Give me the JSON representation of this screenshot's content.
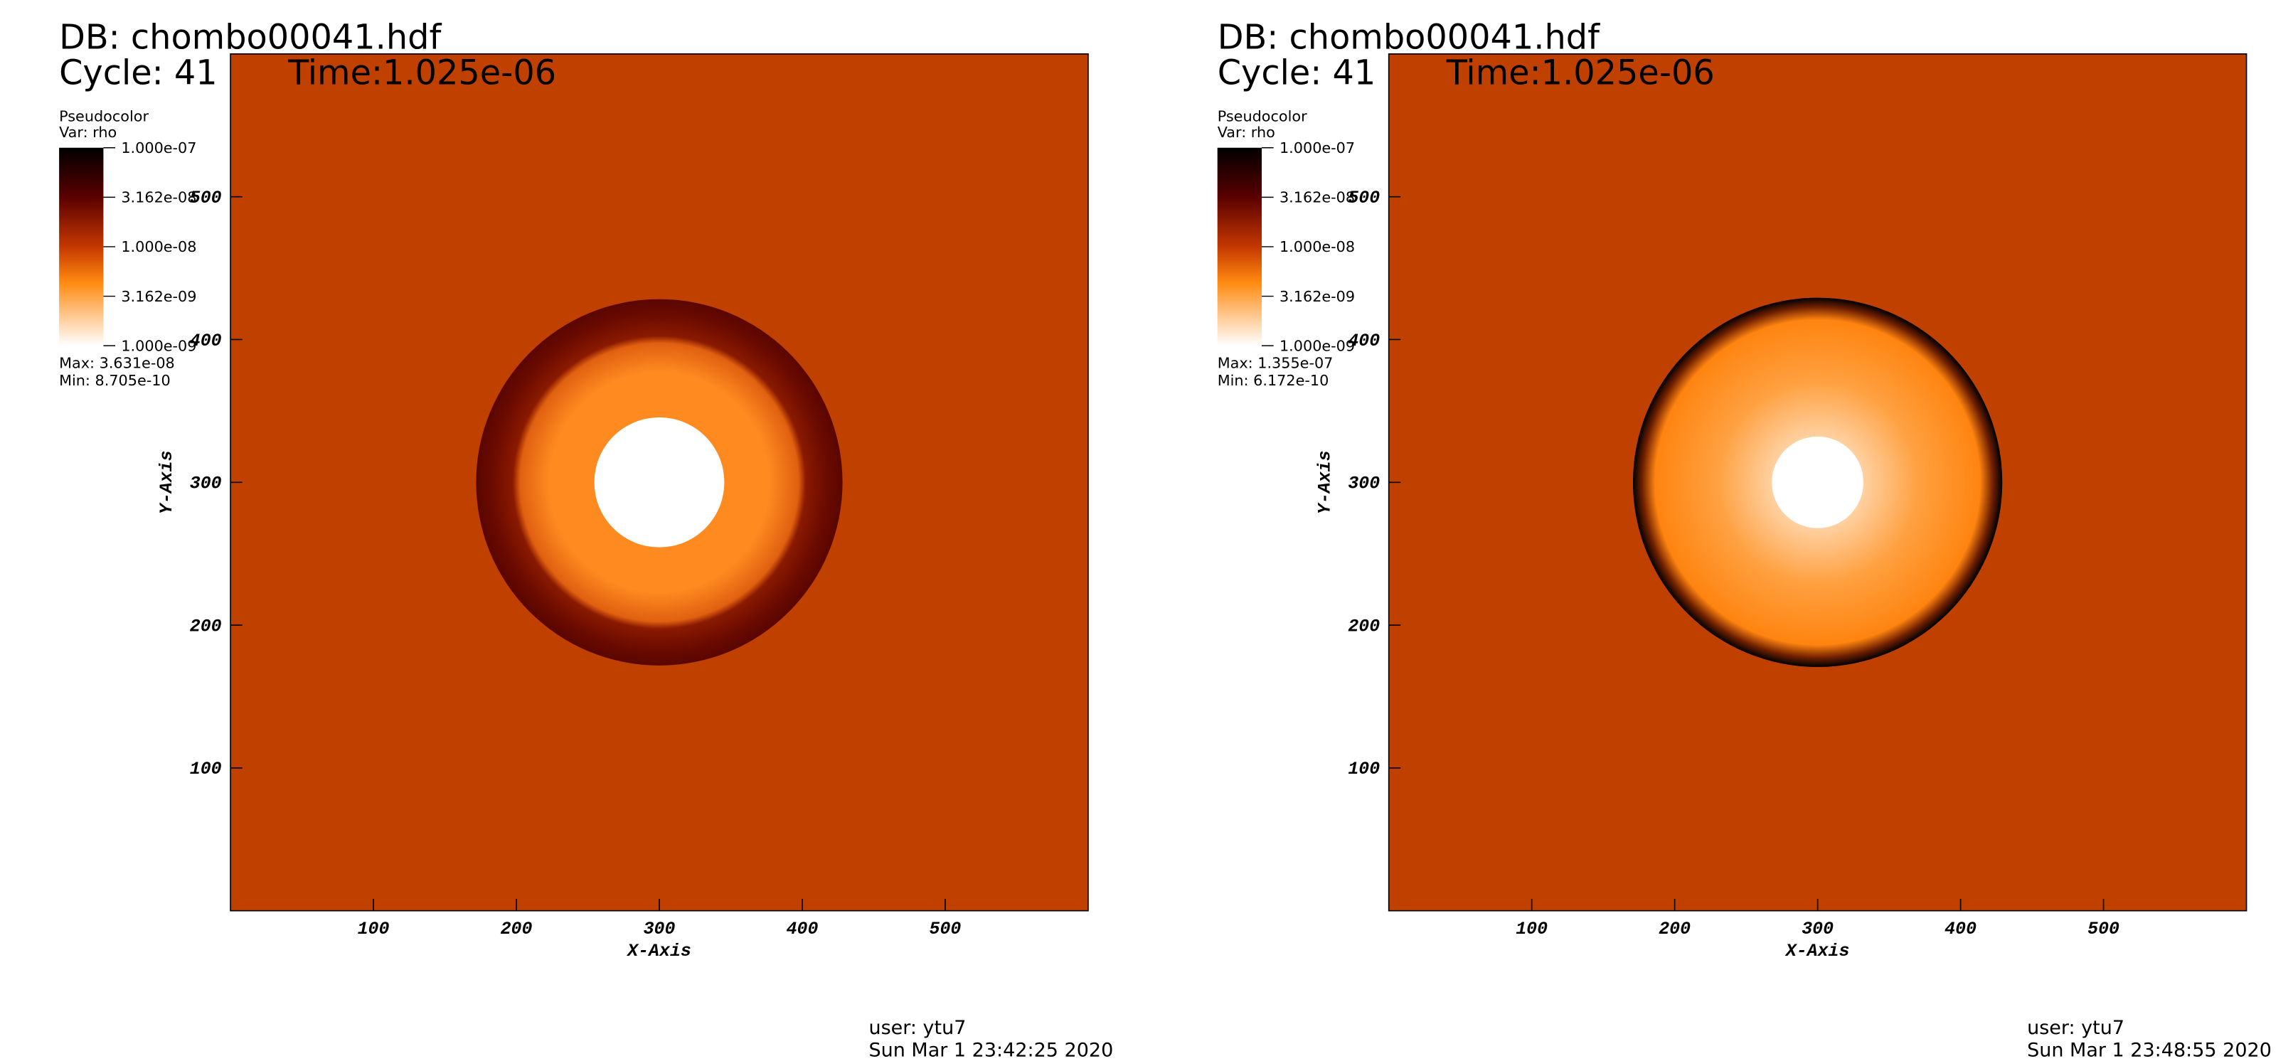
{
  "chart_data": [
    {
      "type": "pseudocolor",
      "db": "DB: chombo00041.hdf",
      "cycle": "Cycle: 41",
      "time": "Time:1.025e-06",
      "legend_title": "Pseudocolor",
      "legend_var": "Var: rho",
      "colorbar_range": [
        1e-09,
        1e-07
      ],
      "log_scale": true,
      "colorbar_ticks": [
        {
          "value": 1e-07,
          "label": "1.000e-07"
        },
        {
          "value": 3.162e-08,
          "label": "3.162e-08"
        },
        {
          "value": 1e-08,
          "label": "1.000e-08"
        },
        {
          "value": 3.162e-09,
          "label": "3.162e-09"
        },
        {
          "value": 1e-09,
          "label": "1.000e-09"
        }
      ],
      "max": "Max:  3.631e-08",
      "min": "Min:  8.705e-10",
      "xlabel": "X-Axis",
      "ylabel": "Y-Axis",
      "xlim": [
        0,
        600
      ],
      "ylim": [
        0,
        600
      ],
      "xticks": [
        100,
        200,
        300,
        400,
        500
      ],
      "yticks": [
        100,
        200,
        300,
        400,
        500
      ],
      "user": "user: ytu7",
      "date": "Sun Mar  1 23:42:25 2020"
    },
    {
      "type": "pseudocolor",
      "db": "DB: chombo00041.hdf",
      "cycle": "Cycle: 41",
      "time": "Time:1.025e-06",
      "legend_title": "Pseudocolor",
      "legend_var": "Var: rho",
      "colorbar_range": [
        1e-09,
        1e-07
      ],
      "log_scale": true,
      "colorbar_ticks": [
        {
          "value": 1e-07,
          "label": "1.000e-07"
        },
        {
          "value": 3.162e-08,
          "label": "3.162e-08"
        },
        {
          "value": 1e-08,
          "label": "1.000e-08"
        },
        {
          "value": 3.162e-09,
          "label": "3.162e-09"
        },
        {
          "value": 1e-09,
          "label": "1.000e-09"
        }
      ],
      "max": "Max:  1.355e-07",
      "min": "Min:  6.172e-10",
      "xlabel": "X-Axis",
      "ylabel": "Y-Axis",
      "xlim": [
        0,
        600
      ],
      "ylim": [
        0,
        600
      ],
      "xticks": [
        100,
        200,
        300,
        400,
        500
      ],
      "yticks": [
        100,
        200,
        300,
        400,
        500
      ],
      "user": "user: ytu7",
      "date": "Sun Mar  1 23:48:55 2020"
    }
  ]
}
